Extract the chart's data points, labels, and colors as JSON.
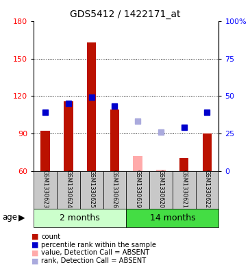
{
  "title": "GDS5412 / 1422171_at",
  "samples": [
    "GSM1330623",
    "GSM1330624",
    "GSM1330625",
    "GSM1330626",
    "GSM1330619",
    "GSM1330620",
    "GSM1330621",
    "GSM1330622"
  ],
  "ylim_left": [
    60,
    180
  ],
  "yticks_left": [
    60,
    90,
    120,
    150,
    180
  ],
  "yticks_right": [
    0,
    25,
    50,
    75,
    100
  ],
  "ytick_labels_right": [
    "0",
    "25",
    "50",
    "75",
    "100%"
  ],
  "count_bars": [
    92,
    116,
    163,
    109,
    null,
    null,
    70,
    90
  ],
  "count_bars_absent": [
    null,
    null,
    null,
    null,
    72,
    61,
    null,
    null
  ],
  "percentile_bars": [
    107,
    114,
    119,
    112,
    null,
    null,
    95,
    107
  ],
  "percentile_bars_absent": [
    null,
    null,
    null,
    null,
    100,
    91,
    null,
    null
  ],
  "bar_bottom": 60,
  "count_color": "#BB1100",
  "count_absent_color": "#FFAAAA",
  "percentile_color": "#0000CC",
  "percentile_absent_color": "#AAAADD",
  "bar_width": 0.4,
  "group_label_1": "2 months",
  "group_label_2": "14 months",
  "group_bg_1": "#CCFFCC",
  "group_bg_2": "#44DD44",
  "sample_bg": "#C8C8C8",
  "age_label": "age",
  "legend_count": "count",
  "legend_percentile": "percentile rank within the sample",
  "legend_absent_val": "value, Detection Call = ABSENT",
  "legend_absent_rank": "rank, Detection Call = ABSENT"
}
